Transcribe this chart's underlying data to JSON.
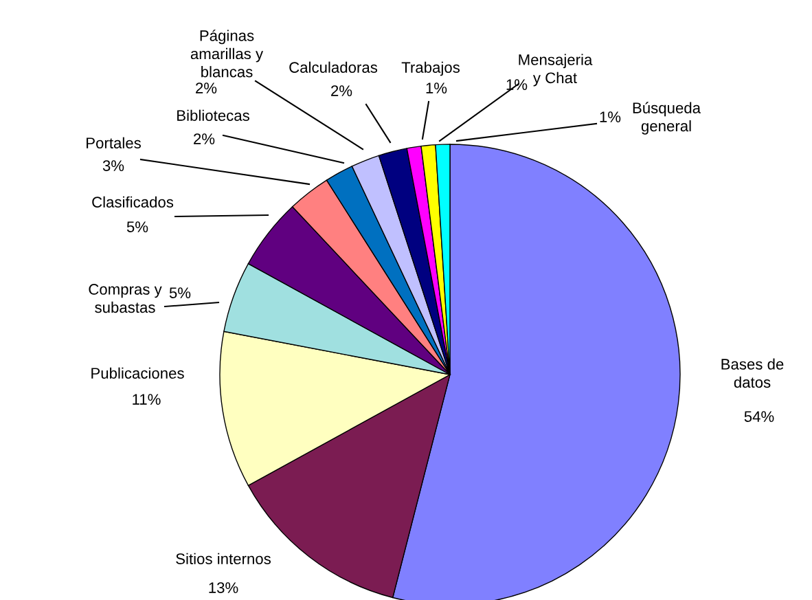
{
  "chart_data": {
    "type": "pie",
    "categories": [
      "Bases de\ndatos",
      "Sitios internos",
      "Publicaciones",
      "Compras y\nsubastas",
      "Clasificados",
      "Portales",
      "Bibliotecas",
      "Páginas\namarillas y\nblancas",
      "Calculadoras",
      "Trabajos",
      "Mensajeria\ny Chat",
      "Búsqueda\ngeneral"
    ],
    "values": [
      54,
      13,
      11,
      5,
      5,
      3,
      2,
      2,
      2,
      1,
      1,
      1
    ],
    "colors": [
      "#8080ff",
      "#7b1c52",
      "#ffffc0",
      "#a0e0e0",
      "#600080",
      "#ff8080",
      "#0070c0",
      "#c0c0ff",
      "#000080",
      "#ff00ff",
      "#ffff00",
      "#00ffff"
    ],
    "value_labels": [
      "54%",
      "13%",
      "11%",
      "5%",
      "5%",
      "3%",
      "2%",
      "2%",
      "2%",
      "1%",
      "1%",
      "1%"
    ]
  }
}
